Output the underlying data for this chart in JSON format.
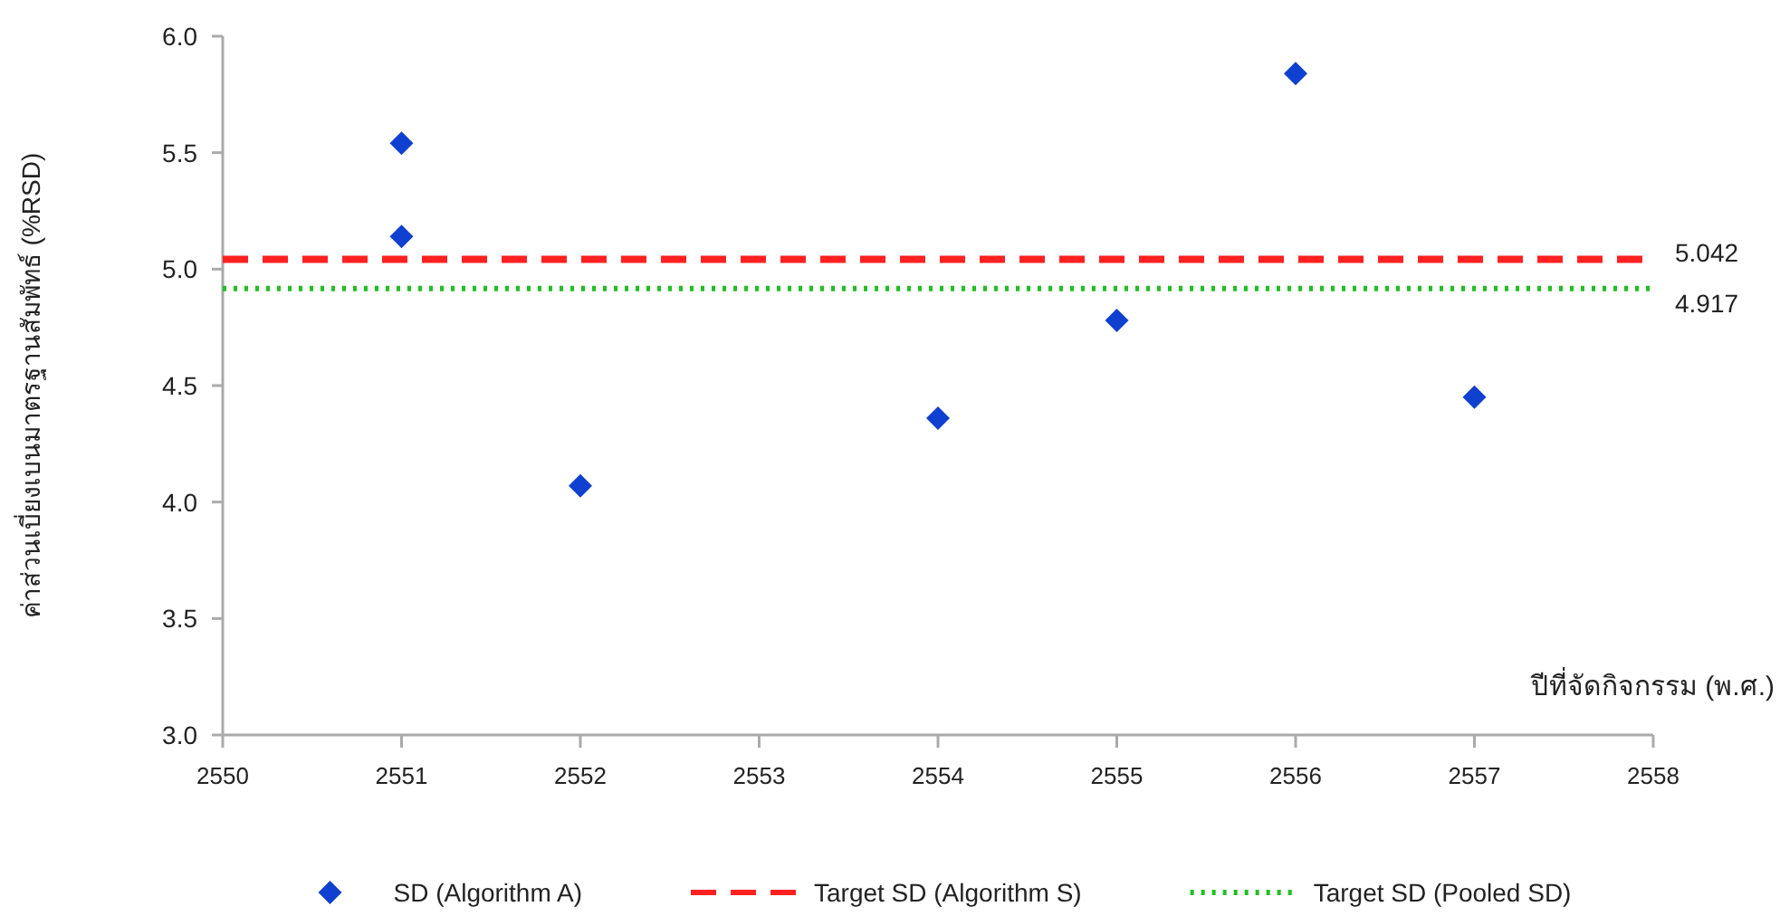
{
  "chart_data": {
    "type": "scatter",
    "xlabel": "ปีที่จัดกิจกรรม (พ.ศ.)",
    "ylabel": "ค่าส่วนเบี่ยงเบนมาตรฐานสัมพัทธ์ (%RSD)",
    "xlim": [
      2550,
      2558
    ],
    "xticks": [
      2550,
      2551,
      2552,
      2553,
      2554,
      2555,
      2556,
      2557,
      2558
    ],
    "ylim": [
      3.0,
      6.0
    ],
    "yticks": [
      {
        "value": 3,
        "label": "3.0"
      },
      {
        "value": 3.5,
        "label": "3.5"
      },
      {
        "value": 4,
        "label": "4.0"
      },
      {
        "value": 4.5,
        "label": "4.5"
      },
      {
        "value": 5,
        "label": "5.0"
      },
      {
        "value": 5.5,
        "label": "5.5"
      },
      {
        "value": 6,
        "label": "6.0"
      }
    ],
    "legend": "bottom",
    "series": [
      {
        "name": "SD (Algorithm A)",
        "marker": "diamond",
        "color": "#1040d0",
        "x": [
          2551,
          2551,
          2552,
          2554,
          2555,
          2556,
          2557
        ],
        "values": [
          5.54,
          5.14,
          4.07,
          4.36,
          4.78,
          5.84,
          4.45
        ]
      },
      {
        "name": "Target SD (Algorithm S)",
        "type": "line",
        "line_style": "dashed",
        "marker": "none",
        "color": "#ff2020",
        "x": [
          2550,
          2558
        ],
        "values": [
          5.042,
          5.042
        ]
      },
      {
        "name": "Target SD (Pooled SD)",
        "type": "line",
        "line_style": "dotted",
        "marker": "none",
        "color": "#20c020",
        "x": [
          2550,
          2558
        ],
        "values": [
          4.917,
          4.917
        ]
      }
    ],
    "annotations": [
      {
        "text": "5.042",
        "x": 2558,
        "y": 5.042
      },
      {
        "text": "4.917",
        "x": 2558,
        "y": 4.917
      }
    ]
  }
}
